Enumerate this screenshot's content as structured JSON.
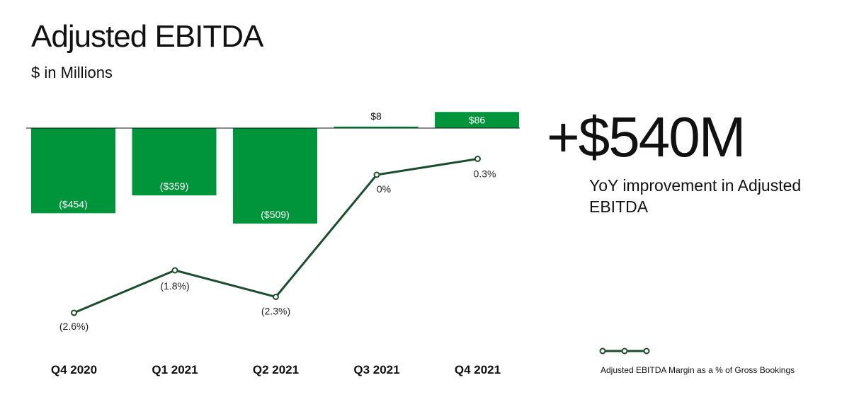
{
  "title": "Adjusted EBITDA",
  "subtitle": "$ in Millions",
  "kpi": {
    "value": "+$540M",
    "caption": "YoY improvement in Adjusted EBITDA"
  },
  "chart_data": {
    "type": "bar",
    "categories": [
      "Q4 2020",
      "Q1 2021",
      "Q2 2021",
      "Q3 2021",
      "Q4 2021"
    ],
    "series": [
      {
        "values": [
          -454,
          -359,
          -509,
          8,
          86
        ],
        "data_labels": [
          "($454)",
          "($359)",
          "($509)",
          "$8",
          "$86"
        ],
        "color": "#00953b"
      },
      {
        "name": "Adjusted EBITDA Margin as a % of Gross Bookings",
        "type": "line",
        "values": [
          -2.6,
          -1.8,
          -2.3,
          0,
          0.3
        ],
        "data_labels": [
          "(2.6%)",
          "(1.8%)",
          "(2.3%)",
          "0%",
          "0.3%"
        ],
        "color": "#1b4d2e"
      }
    ],
    "legend": "bottom-right",
    "grid": false
  }
}
